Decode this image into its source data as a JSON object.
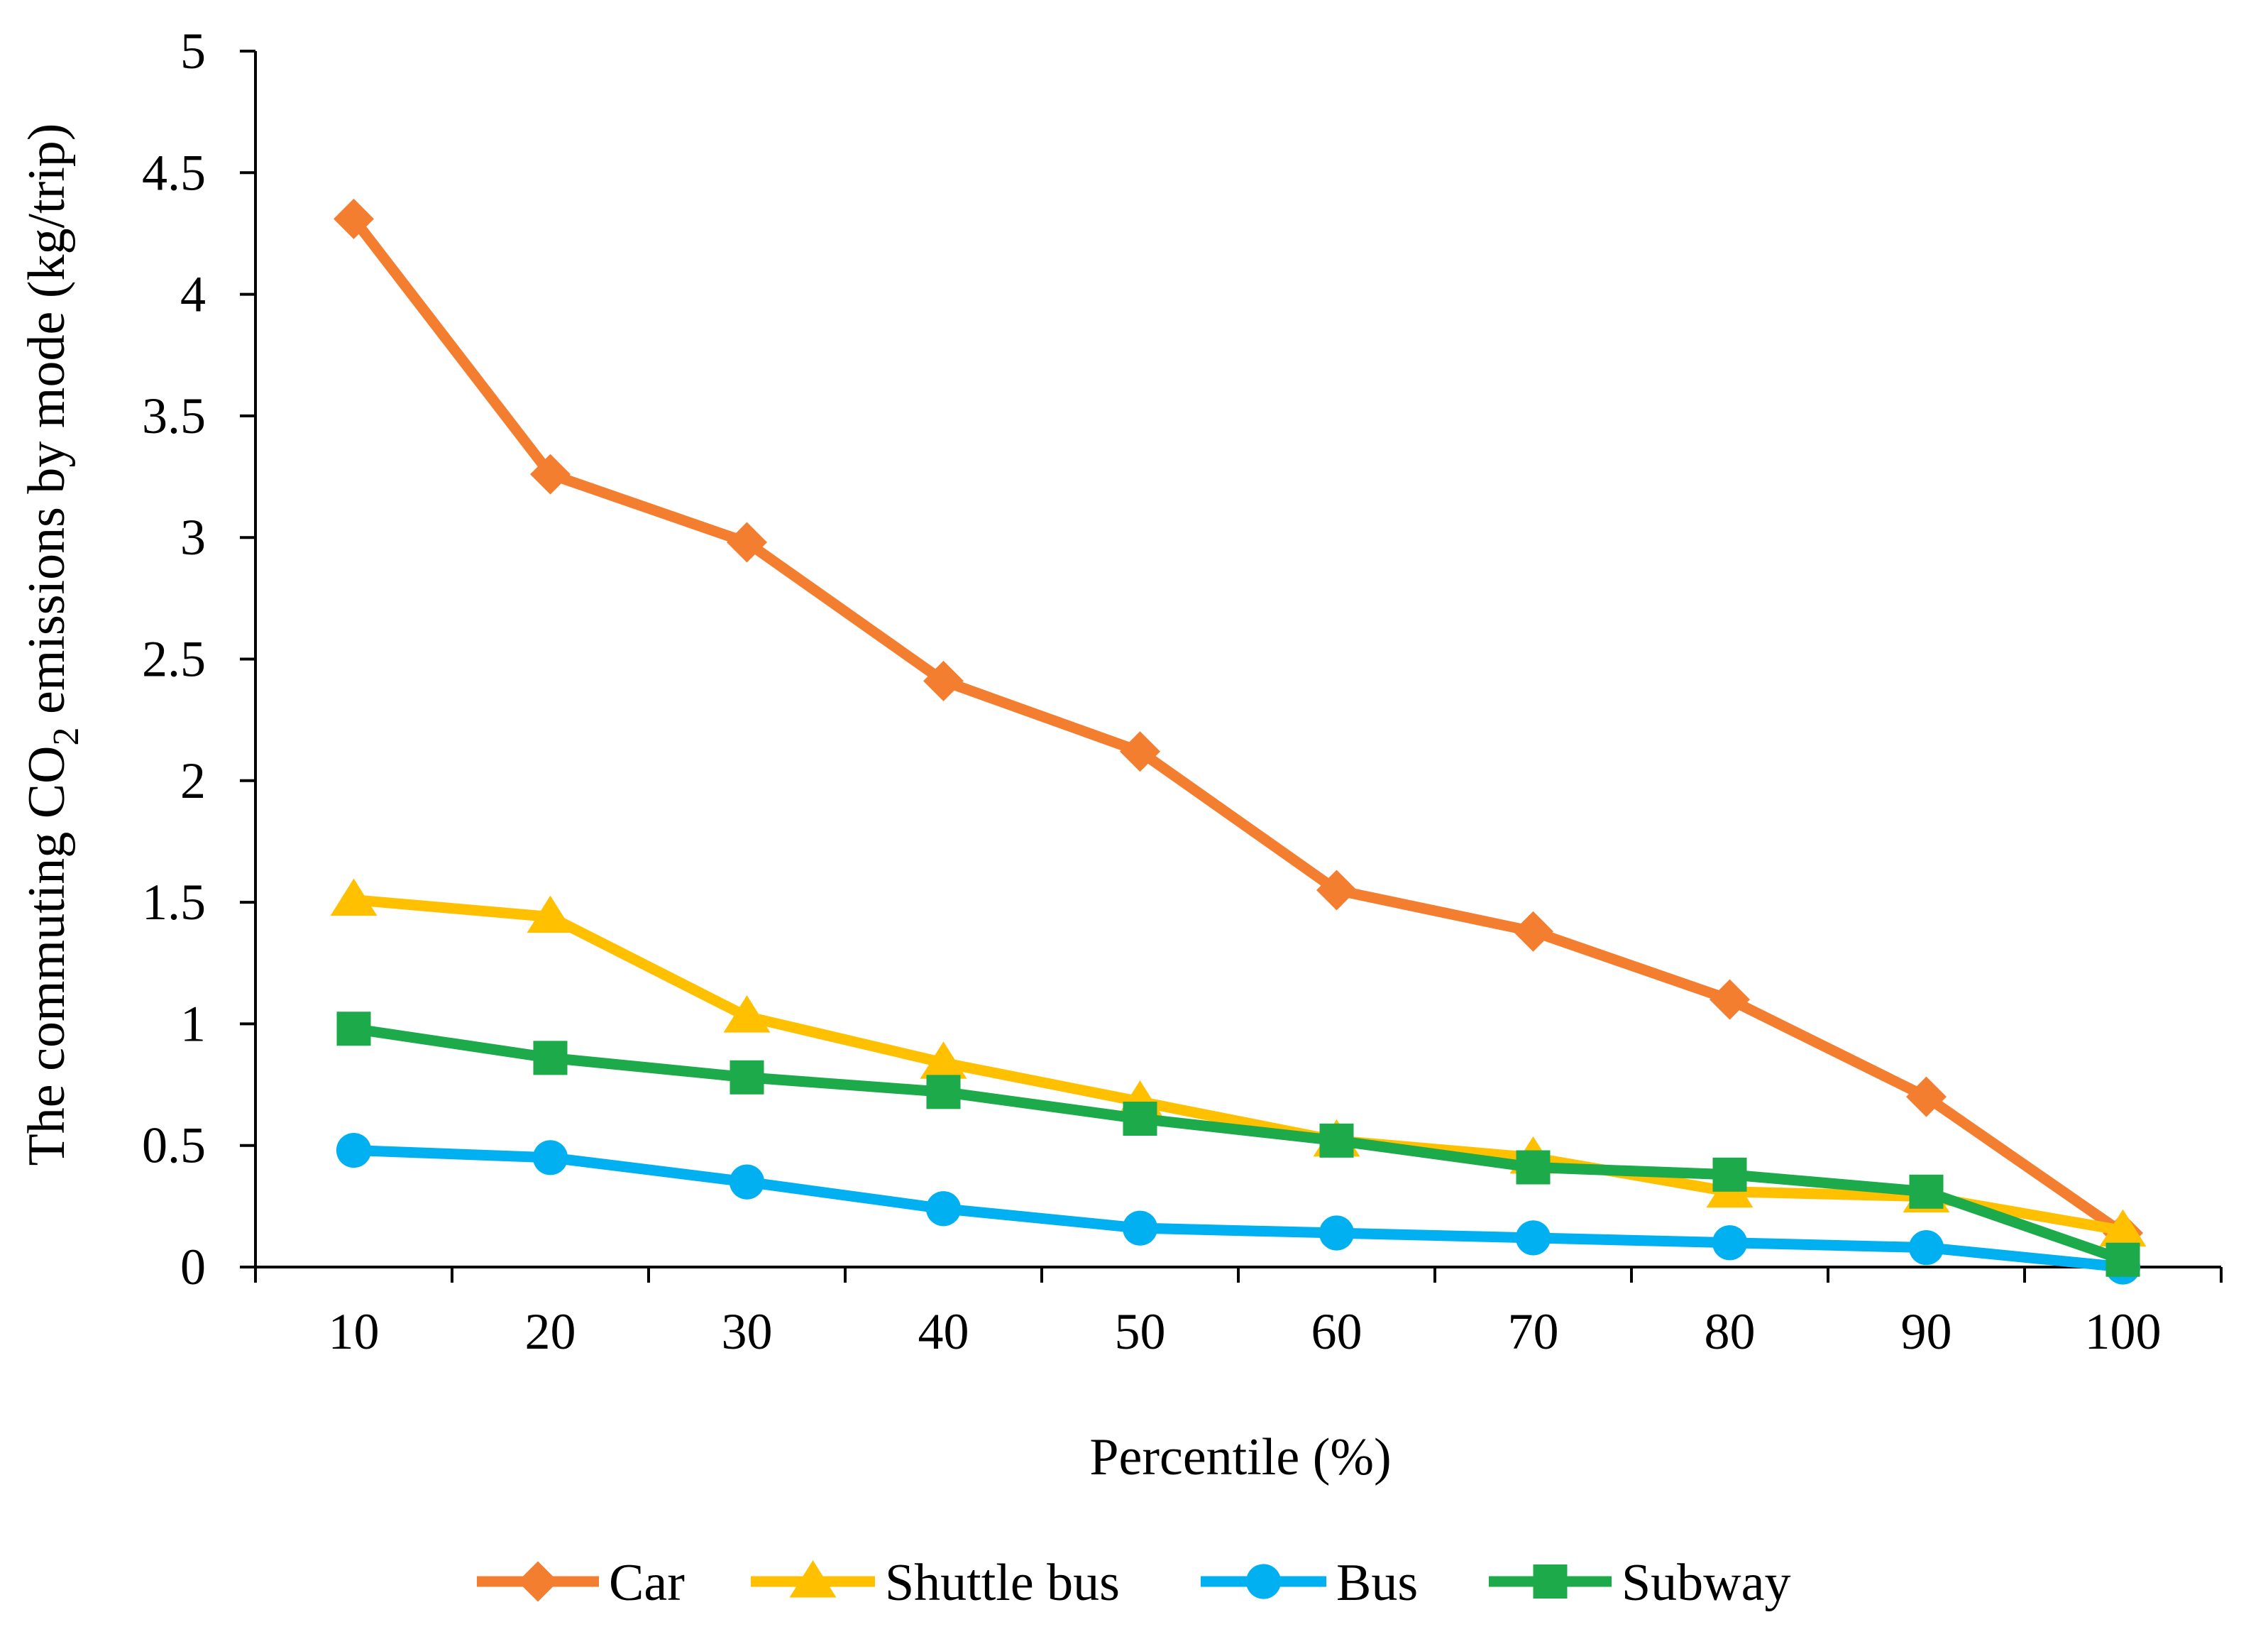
{
  "chart_data": {
    "type": "line",
    "title": "",
    "xlabel": "Percentile (%)",
    "ylabel_parts": [
      "The commuting CO",
      "2",
      " emissions by mode (kg/trip)"
    ],
    "categories": [
      "10",
      "20",
      "30",
      "40",
      "50",
      "60",
      "70",
      "80",
      "90",
      "100"
    ],
    "ylim": [
      0,
      5
    ],
    "yticks": [
      "0",
      "0.5",
      "1",
      "1.5",
      "2",
      "2.5",
      "3",
      "3.5",
      "4",
      "4.5",
      "5"
    ],
    "grid": false,
    "legend_position": "bottom",
    "series": [
      {
        "name": "Car",
        "color": "#F47E30",
        "marker": "diamond",
        "values": [
          4.31,
          3.26,
          2.98,
          2.41,
          2.12,
          1.55,
          1.38,
          1.1,
          0.7,
          0.14
        ]
      },
      {
        "name": "Shuttle bus",
        "color": "#FFC000",
        "marker": "triangle",
        "values": [
          1.51,
          1.44,
          1.03,
          0.84,
          0.68,
          0.52,
          0.45,
          0.31,
          0.29,
          0.15
        ]
      },
      {
        "name": "Bus",
        "color": "#00B0F0",
        "marker": "circle",
        "values": [
          0.48,
          0.45,
          0.35,
          0.24,
          0.16,
          0.14,
          0.12,
          0.1,
          0.08,
          0.0
        ]
      },
      {
        "name": "Subway",
        "color": "#1DAA4B",
        "marker": "square",
        "values": [
          0.98,
          0.86,
          0.78,
          0.72,
          0.61,
          0.52,
          0.41,
          0.38,
          0.31,
          0.03
        ]
      }
    ]
  }
}
